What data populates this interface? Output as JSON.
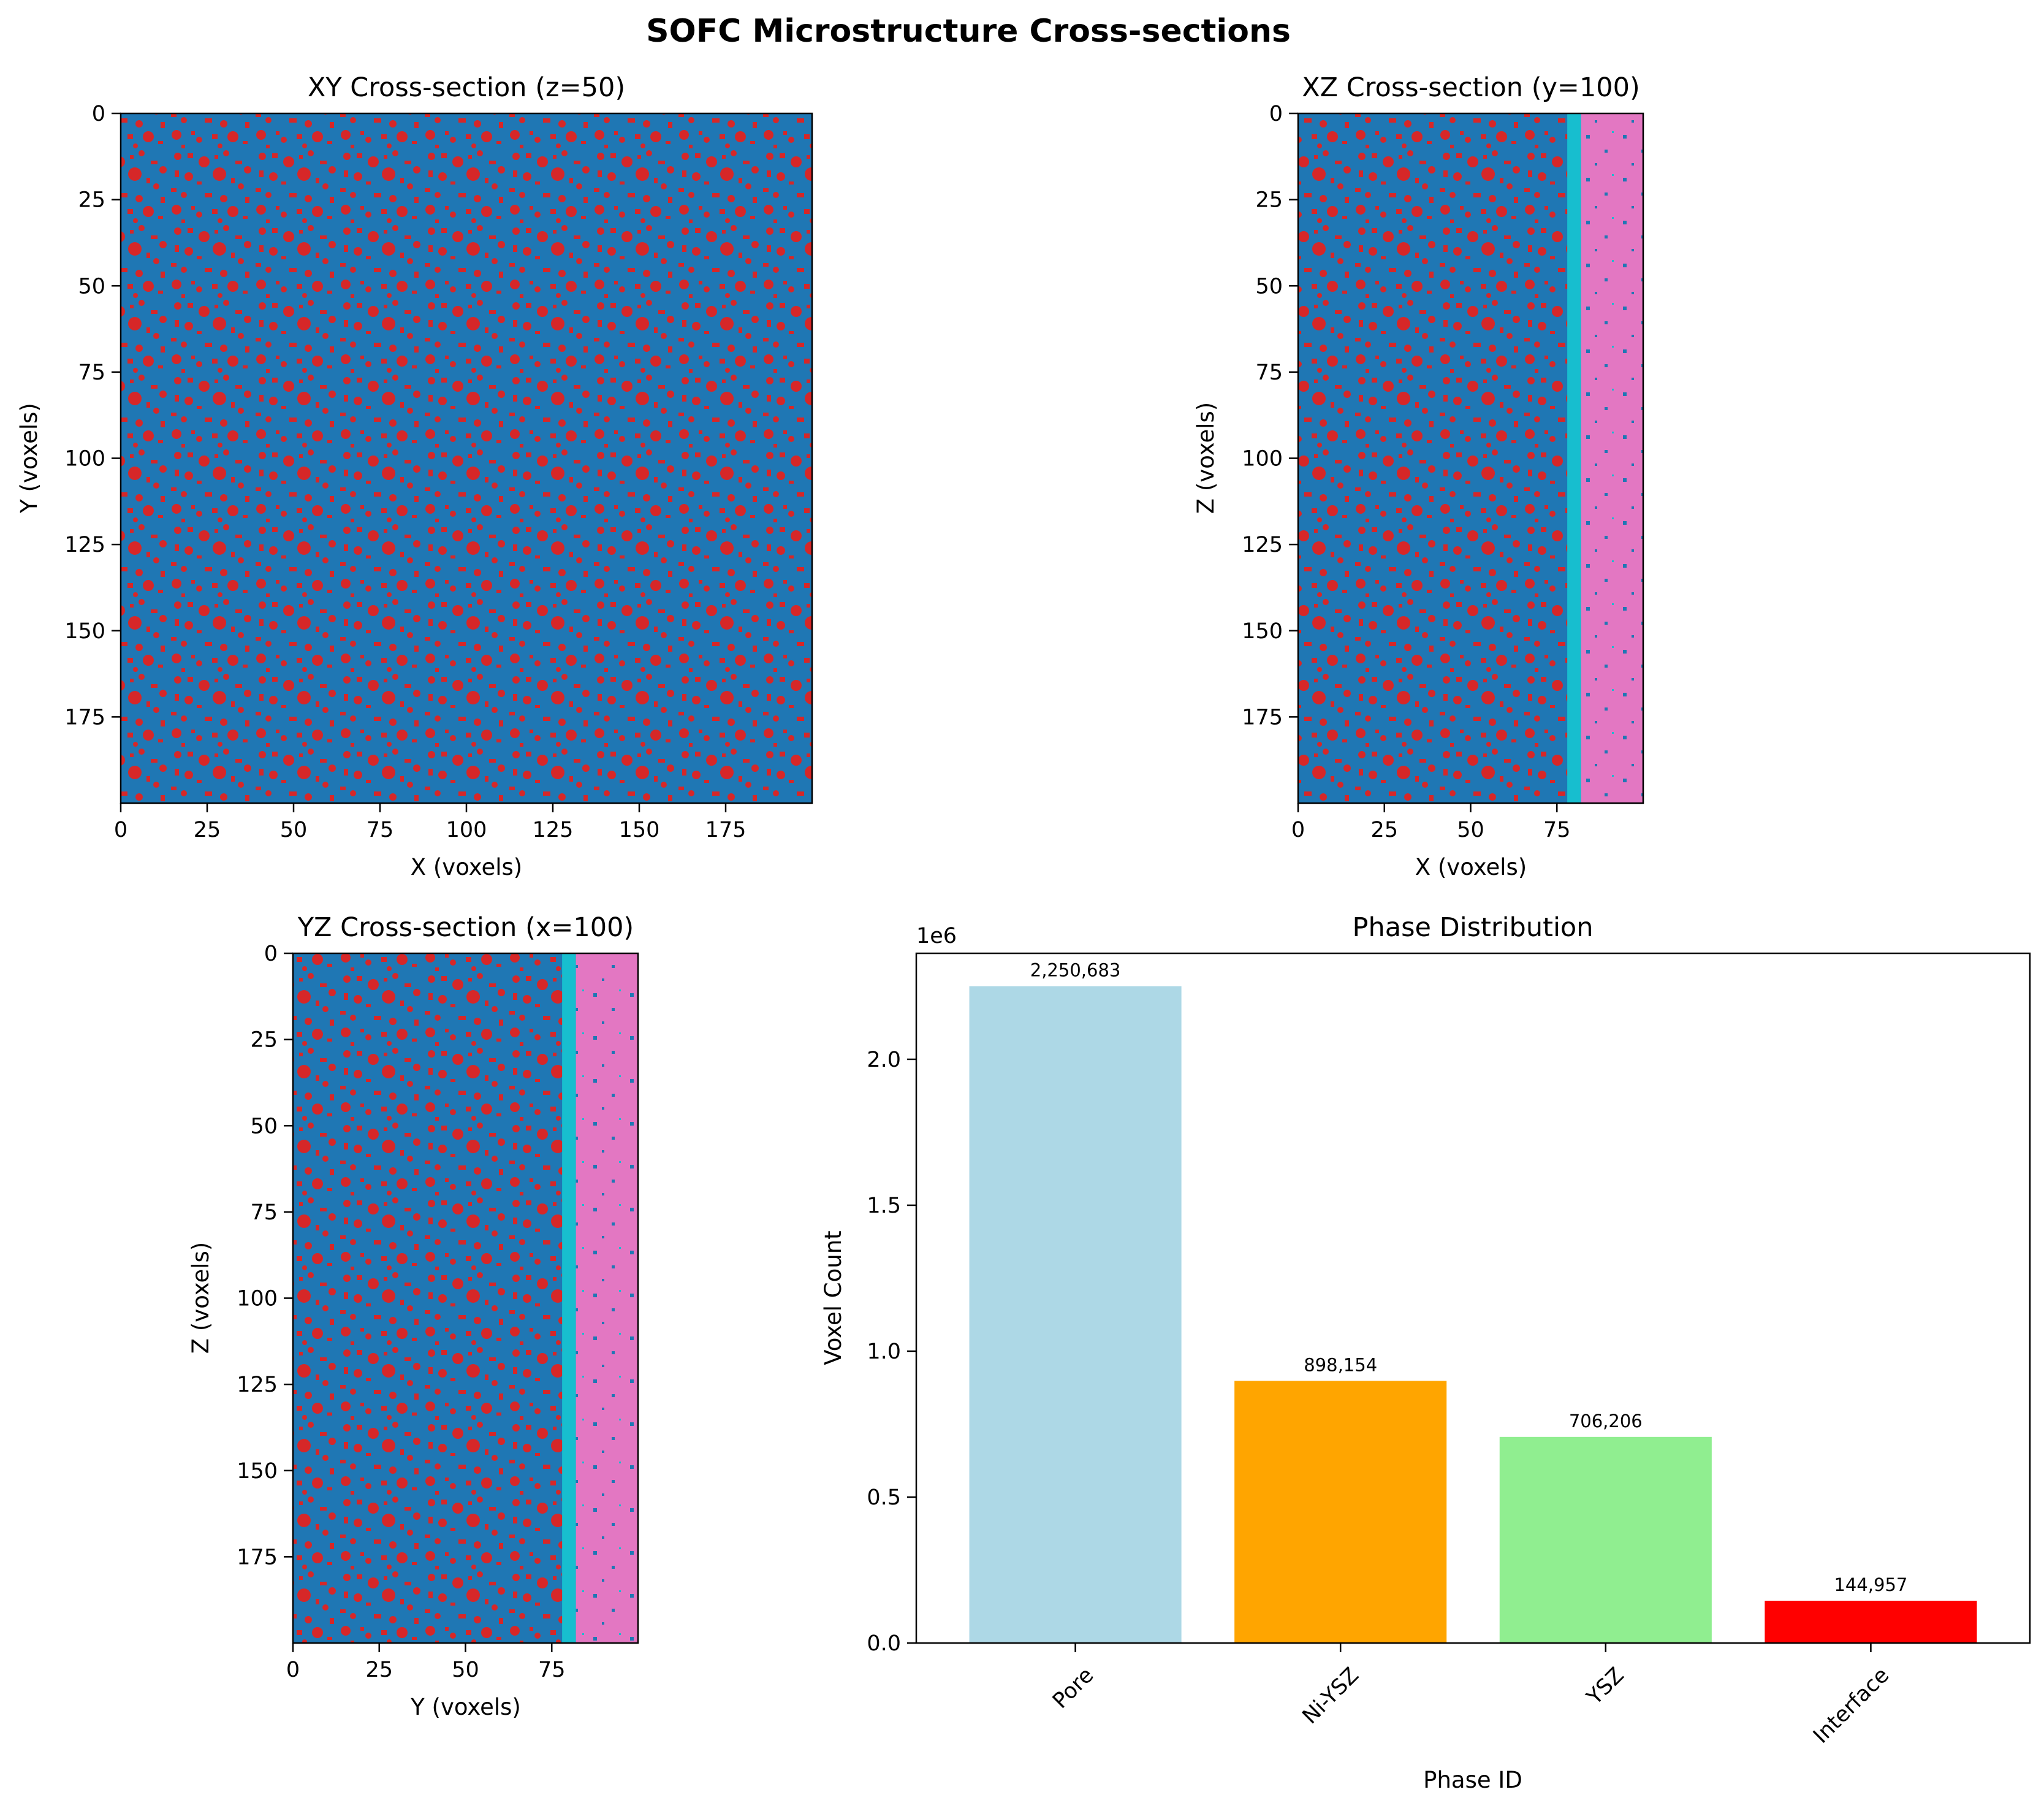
{
  "figure": {
    "title": "SOFC Microstructure Cross-sections"
  },
  "colors": {
    "pore_blue": "#1f77b4",
    "nickel_red": "#d62728",
    "interface_cyan": "#17becf",
    "electrolyte_pink": "#e377c2"
  },
  "chart_data": [
    {
      "type": "heatmap",
      "title": "XY Cross-section (z=50)",
      "xlabel": "X (voxels)",
      "ylabel": "Y (voxels)",
      "xlim": [
        0,
        200
      ],
      "ylim": [
        200,
        0
      ],
      "xticks": [
        0,
        25,
        50,
        75,
        100,
        125,
        150,
        175
      ],
      "yticks": [
        0,
        25,
        50,
        75,
        100,
        125,
        150,
        175
      ],
      "grid": false,
      "layers": []
    },
    {
      "type": "heatmap",
      "title": "XZ Cross-section (y=100)",
      "xlabel": "X (voxels)",
      "ylabel": "Z (voxels)",
      "xlim": [
        0,
        100
      ],
      "ylim": [
        200,
        0
      ],
      "xticks": [
        0,
        25,
        50,
        75
      ],
      "yticks": [
        0,
        25,
        50,
        75,
        100,
        125,
        150,
        175
      ],
      "grid": false,
      "layers": [
        {
          "from": 78,
          "to": 82,
          "color": "#17becf"
        },
        {
          "from": 82,
          "to": 100,
          "color": "#e377c2"
        }
      ]
    },
    {
      "type": "heatmap",
      "title": "YZ Cross-section (x=100)",
      "xlabel": "Y (voxels)",
      "ylabel": "Z (voxels)",
      "xlim": [
        0,
        100
      ],
      "ylim": [
        200,
        0
      ],
      "xticks": [
        0,
        25,
        50,
        75
      ],
      "yticks": [
        0,
        25,
        50,
        75,
        100,
        125,
        150,
        175
      ],
      "grid": false,
      "layers": [
        {
          "from": 78,
          "to": 82,
          "color": "#17becf"
        },
        {
          "from": 82,
          "to": 100,
          "color": "#e377c2"
        }
      ]
    },
    {
      "type": "bar",
      "title": "Phase Distribution",
      "xlabel": "Phase ID",
      "ylabel": "Voxel Count",
      "categories": [
        "Pore",
        "Ni-YSZ",
        "YSZ",
        "Interface"
      ],
      "values": [
        2250683,
        898154,
        706206,
        144957
      ],
      "value_labels": [
        "2,250,683",
        "898,154",
        "706,206",
        "144,957"
      ],
      "colors": [
        "#add8e6",
        "#ffa500",
        "#90ee90",
        "#ff0000"
      ],
      "ylim": [
        0,
        2363217
      ],
      "yticks": [
        0,
        500000,
        1000000,
        1500000,
        2000000
      ],
      "ytick_labels": [
        "0.0",
        "0.5",
        "1.0",
        "1.5",
        "2.0"
      ],
      "offset_text": "1e6",
      "grid": false
    }
  ]
}
